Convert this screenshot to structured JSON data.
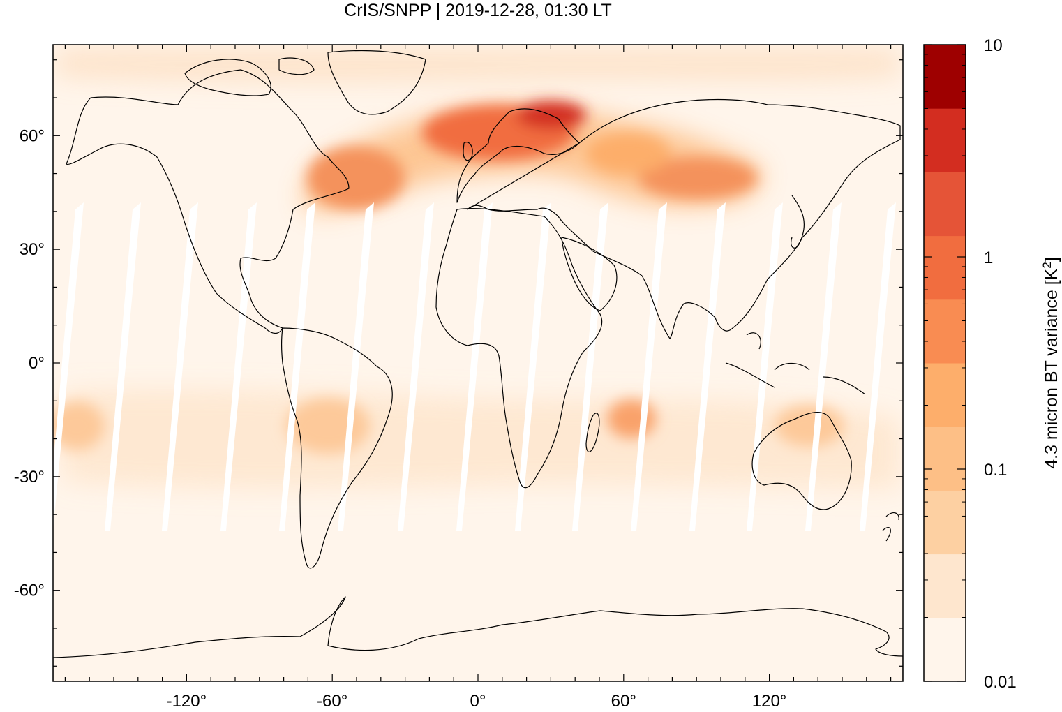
{
  "title": "CrIS/SNPP | 2019-12-28, 01:30 LT",
  "map": {
    "projection": "equirectangular",
    "lon_range": [
      -175,
      175
    ],
    "lat_range": [
      -84,
      84
    ],
    "x_ticks": [
      {
        "value": -120,
        "label": "-120°"
      },
      {
        "value": -60,
        "label": "-60°"
      },
      {
        "value": 0,
        "label": "0°"
      },
      {
        "value": 60,
        "label": "60°"
      },
      {
        "value": 120,
        "label": "120°"
      }
    ],
    "y_ticks": [
      {
        "value": 60,
        "label": "60°"
      },
      {
        "value": 30,
        "label": "30°"
      },
      {
        "value": 0,
        "label": "0°"
      },
      {
        "value": -30,
        "label": "-30°"
      },
      {
        "value": -60,
        "label": "-60°"
      }
    ],
    "background_color": "#fff5eb",
    "outline_color": "#000000"
  },
  "colorbar": {
    "label_prefix": "4.3 micron BT variance [K",
    "label_sup": "2",
    "label_suffix": "]",
    "scale": "log",
    "range": [
      0.01,
      10
    ],
    "ticks": [
      {
        "value": 10,
        "label": "10"
      },
      {
        "value": 1,
        "label": "1"
      },
      {
        "value": 0.1,
        "label": "0.1"
      },
      {
        "value": 0.01,
        "label": "0.01"
      }
    ],
    "levels": [
      "#fff5eb",
      "#fee6ce",
      "#fdd0a2",
      "#fdbf86",
      "#fdae6b",
      "#f98c52",
      "#f16d3f",
      "#e55437",
      "#d32d20",
      "#9e0000"
    ]
  }
}
